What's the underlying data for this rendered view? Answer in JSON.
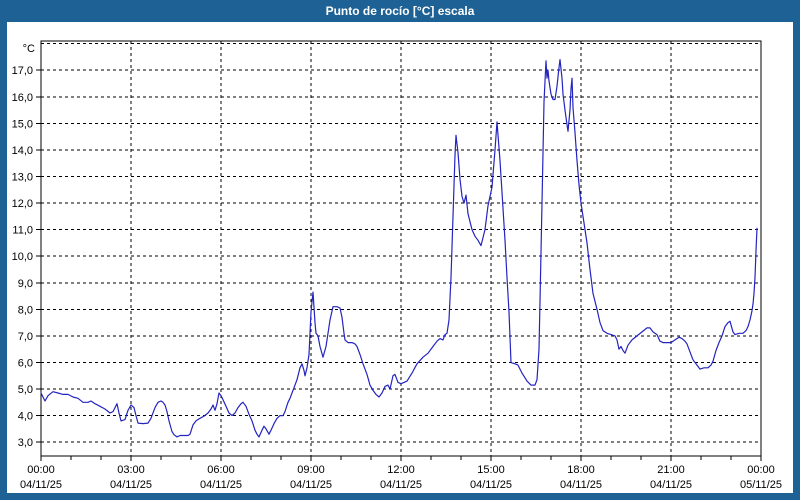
{
  "window": {
    "title": "Punto de rocío [°C] escala"
  },
  "colors": {
    "titlebar": "#1e6195",
    "window_border": "#1e6195",
    "background": "#ffffff",
    "grid": "#000000",
    "text": "#000000",
    "line": "#2424c0"
  },
  "chart_data": {
    "type": "line",
    "title": "Punto de rocío [°C] escala",
    "series": [
      {
        "name": "Punto de rocío",
        "unit": "°C",
        "color": "#2424c0"
      }
    ],
    "grid": "dashed",
    "legend_position": "none",
    "x_axis": {
      "start_label": "00:00 04/11/25",
      "end_label": "00:00 05/11/25",
      "major_tick_interval_min": 180,
      "minor_tick_interval_min": 60,
      "ticks": [
        {
          "time": "00:00",
          "date": "04/11/25"
        },
        {
          "time": "03:00",
          "date": "04/11/25"
        },
        {
          "time": "06:00",
          "date": "04/11/25"
        },
        {
          "time": "09:00",
          "date": "04/11/25"
        },
        {
          "time": "12:00",
          "date": "04/11/25"
        },
        {
          "time": "15:00",
          "date": "04/11/25"
        },
        {
          "time": "18:00",
          "date": "04/11/25"
        },
        {
          "time": "21:00",
          "date": "04/11/25"
        },
        {
          "time": "00:00",
          "date": "05/11/25"
        }
      ]
    },
    "y_axis": {
      "unit": "°C",
      "tick_labels": [
        "17,0",
        "16,0",
        "15,0",
        "14,0",
        "13,0",
        "12,0",
        "11,0",
        "10,0",
        "9,0",
        "8,0",
        "7,0",
        "6,0",
        "5,0",
        "4,0",
        "3,0"
      ],
      "tick_values": [
        17,
        16,
        15,
        14,
        13,
        12,
        11,
        10,
        9,
        8,
        7,
        6,
        5,
        4,
        3
      ],
      "range_top": 18.1,
      "range_bottom": 2.48
    },
    "points_format": [
      "minutes_since_00:00_04/11/25",
      "deg_C"
    ],
    "points": [
      [
        0,
        4.85
      ],
      [
        8,
        4.55
      ],
      [
        14,
        4.75
      ],
      [
        24,
        4.9
      ],
      [
        34,
        4.85
      ],
      [
        44,
        4.8
      ],
      [
        54,
        4.8
      ],
      [
        64,
        4.7
      ],
      [
        74,
        4.65
      ],
      [
        84,
        4.5
      ],
      [
        94,
        4.5
      ],
      [
        100,
        4.55
      ],
      [
        108,
        4.45
      ],
      [
        118,
        4.35
      ],
      [
        128,
        4.25
      ],
      [
        138,
        4.1
      ],
      [
        144,
        4.15
      ],
      [
        152,
        4.45
      ],
      [
        156,
        4.1
      ],
      [
        160,
        3.8
      ],
      [
        168,
        3.85
      ],
      [
        174,
        4.2
      ],
      [
        180,
        4.4
      ],
      [
        186,
        4.3
      ],
      [
        190,
        4.0
      ],
      [
        194,
        3.72
      ],
      [
        204,
        3.7
      ],
      [
        214,
        3.72
      ],
      [
        220,
        3.9
      ],
      [
        228,
        4.3
      ],
      [
        234,
        4.5
      ],
      [
        240,
        4.55
      ],
      [
        244,
        4.5
      ],
      [
        248,
        4.4
      ],
      [
        252,
        4.15
      ],
      [
        256,
        3.8
      ],
      [
        262,
        3.4
      ],
      [
        266,
        3.28
      ],
      [
        272,
        3.2
      ],
      [
        278,
        3.25
      ],
      [
        286,
        3.25
      ],
      [
        294,
        3.25
      ],
      [
        298,
        3.3
      ],
      [
        304,
        3.65
      ],
      [
        310,
        3.8
      ],
      [
        318,
        3.9
      ],
      [
        326,
        3.98
      ],
      [
        334,
        4.1
      ],
      [
        340,
        4.25
      ],
      [
        344,
        4.4
      ],
      [
        348,
        4.2
      ],
      [
        352,
        4.45
      ],
      [
        356,
        4.85
      ],
      [
        360,
        4.75
      ],
      [
        364,
        4.6
      ],
      [
        370,
        4.35
      ],
      [
        376,
        4.1
      ],
      [
        382,
        4.0
      ],
      [
        388,
        4.1
      ],
      [
        394,
        4.3
      ],
      [
        400,
        4.45
      ],
      [
        404,
        4.5
      ],
      [
        410,
        4.35
      ],
      [
        416,
        4.05
      ],
      [
        422,
        3.8
      ],
      [
        428,
        3.45
      ],
      [
        432,
        3.3
      ],
      [
        436,
        3.2
      ],
      [
        442,
        3.45
      ],
      [
        446,
        3.6
      ],
      [
        450,
        3.5
      ],
      [
        456,
        3.3
      ],
      [
        460,
        3.45
      ],
      [
        466,
        3.7
      ],
      [
        472,
        3.9
      ],
      [
        478,
        4.0
      ],
      [
        484,
        4.0
      ],
      [
        488,
        4.15
      ],
      [
        494,
        4.5
      ],
      [
        498,
        4.65
      ],
      [
        504,
        4.95
      ],
      [
        508,
        5.15
      ],
      [
        512,
        5.35
      ],
      [
        518,
        5.8
      ],
      [
        522,
        5.95
      ],
      [
        526,
        5.7
      ],
      [
        528,
        5.5
      ],
      [
        532,
        5.8
      ],
      [
        536,
        6.3
      ],
      [
        540,
        7.9
      ],
      [
        544,
        8.65
      ],
      [
        548,
        7.5
      ],
      [
        550,
        7.1
      ],
      [
        554,
        7.0
      ],
      [
        558,
        6.6
      ],
      [
        564,
        6.2
      ],
      [
        570,
        6.6
      ],
      [
        574,
        7.1
      ],
      [
        578,
        7.6
      ],
      [
        584,
        8.1
      ],
      [
        592,
        8.1
      ],
      [
        598,
        8.05
      ],
      [
        602,
        7.7
      ],
      [
        606,
        7.1
      ],
      [
        608,
        6.85
      ],
      [
        614,
        6.75
      ],
      [
        622,
        6.75
      ],
      [
        628,
        6.7
      ],
      [
        632,
        6.6
      ],
      [
        638,
        6.3
      ],
      [
        644,
        5.95
      ],
      [
        652,
        5.55
      ],
      [
        658,
        5.15
      ],
      [
        664,
        4.95
      ],
      [
        670,
        4.8
      ],
      [
        676,
        4.7
      ],
      [
        682,
        4.85
      ],
      [
        688,
        5.1
      ],
      [
        694,
        5.15
      ],
      [
        698,
        5.0
      ],
      [
        704,
        5.5
      ],
      [
        708,
        5.55
      ],
      [
        714,
        5.25
      ],
      [
        720,
        5.2
      ],
      [
        726,
        5.25
      ],
      [
        732,
        5.3
      ],
      [
        742,
        5.6
      ],
      [
        752,
        5.95
      ],
      [
        764,
        6.2
      ],
      [
        774,
        6.35
      ],
      [
        784,
        6.6
      ],
      [
        792,
        6.8
      ],
      [
        798,
        6.9
      ],
      [
        804,
        6.85
      ],
      [
        808,
        7.05
      ],
      [
        812,
        7.1
      ],
      [
        816,
        7.6
      ],
      [
        820,
        9.2
      ],
      [
        824,
        11.5
      ],
      [
        828,
        13.8
      ],
      [
        830,
        14.55
      ],
      [
        834,
        13.9
      ],
      [
        838,
        12.9
      ],
      [
        842,
        12.25
      ],
      [
        846,
        12.0
      ],
      [
        850,
        12.3
      ],
      [
        854,
        11.6
      ],
      [
        862,
        11.0
      ],
      [
        868,
        10.75
      ],
      [
        874,
        10.6
      ],
      [
        880,
        10.4
      ],
      [
        888,
        11.0
      ],
      [
        894,
        11.9
      ],
      [
        902,
        12.6
      ],
      [
        908,
        14.0
      ],
      [
        912,
        15.05
      ],
      [
        918,
        13.6
      ],
      [
        922,
        12.4
      ],
      [
        928,
        10.6
      ],
      [
        932,
        9.2
      ],
      [
        936,
        7.9
      ],
      [
        940,
        6.0
      ],
      [
        948,
        5.95
      ],
      [
        954,
        5.9
      ],
      [
        962,
        5.6
      ],
      [
        972,
        5.3
      ],
      [
        980,
        5.15
      ],
      [
        988,
        5.15
      ],
      [
        992,
        5.35
      ],
      [
        996,
        6.5
      ],
      [
        998,
        8.3
      ],
      [
        1002,
        12.0
      ],
      [
        1006,
        15.8
      ],
      [
        1010,
        17.35
      ],
      [
        1012,
        16.7
      ],
      [
        1014,
        17.0
      ],
      [
        1016,
        16.6
      ],
      [
        1020,
        16.1
      ],
      [
        1024,
        15.9
      ],
      [
        1028,
        15.9
      ],
      [
        1032,
        16.4
      ],
      [
        1036,
        17.1
      ],
      [
        1038,
        17.4
      ],
      [
        1042,
        16.7
      ],
      [
        1044,
        16.1
      ],
      [
        1048,
        15.5
      ],
      [
        1052,
        14.95
      ],
      [
        1054,
        14.7
      ],
      [
        1058,
        15.5
      ],
      [
        1060,
        16.3
      ],
      [
        1062,
        16.7
      ],
      [
        1064,
        15.6
      ],
      [
        1068,
        14.65
      ],
      [
        1072,
        13.6
      ],
      [
        1076,
        12.7
      ],
      [
        1080,
        12.0
      ],
      [
        1084,
        11.5
      ],
      [
        1092,
        10.5
      ],
      [
        1098,
        9.5
      ],
      [
        1104,
        8.6
      ],
      [
        1112,
        8.0
      ],
      [
        1118,
        7.5
      ],
      [
        1124,
        7.2
      ],
      [
        1132,
        7.1
      ],
      [
        1140,
        7.05
      ],
      [
        1148,
        7.0
      ],
      [
        1152,
        6.85
      ],
      [
        1156,
        6.5
      ],
      [
        1160,
        6.6
      ],
      [
        1164,
        6.45
      ],
      [
        1168,
        6.35
      ],
      [
        1174,
        6.65
      ],
      [
        1182,
        6.85
      ],
      [
        1192,
        7.0
      ],
      [
        1202,
        7.15
      ],
      [
        1212,
        7.3
      ],
      [
        1218,
        7.3
      ],
      [
        1224,
        7.15
      ],
      [
        1232,
        7.05
      ],
      [
        1238,
        6.8
      ],
      [
        1244,
        6.75
      ],
      [
        1254,
        6.75
      ],
      [
        1260,
        6.75
      ],
      [
        1268,
        6.85
      ],
      [
        1276,
        6.95
      ],
      [
        1282,
        6.9
      ],
      [
        1288,
        6.8
      ],
      [
        1292,
        6.7
      ],
      [
        1298,
        6.4
      ],
      [
        1304,
        6.1
      ],
      [
        1312,
        5.9
      ],
      [
        1318,
        5.75
      ],
      [
        1326,
        5.8
      ],
      [
        1334,
        5.8
      ],
      [
        1340,
        5.9
      ],
      [
        1344,
        6.05
      ],
      [
        1350,
        6.45
      ],
      [
        1356,
        6.75
      ],
      [
        1362,
        7.0
      ],
      [
        1368,
        7.35
      ],
      [
        1374,
        7.5
      ],
      [
        1378,
        7.55
      ],
      [
        1384,
        7.15
      ],
      [
        1388,
        7.05
      ],
      [
        1396,
        7.1
      ],
      [
        1404,
        7.1
      ],
      [
        1410,
        7.2
      ],
      [
        1414,
        7.35
      ],
      [
        1418,
        7.6
      ],
      [
        1422,
        7.95
      ],
      [
        1424,
        8.2
      ],
      [
        1426,
        8.6
      ],
      [
        1428,
        9.2
      ],
      [
        1430,
        10.2
      ],
      [
        1432,
        11.05
      ]
    ]
  }
}
